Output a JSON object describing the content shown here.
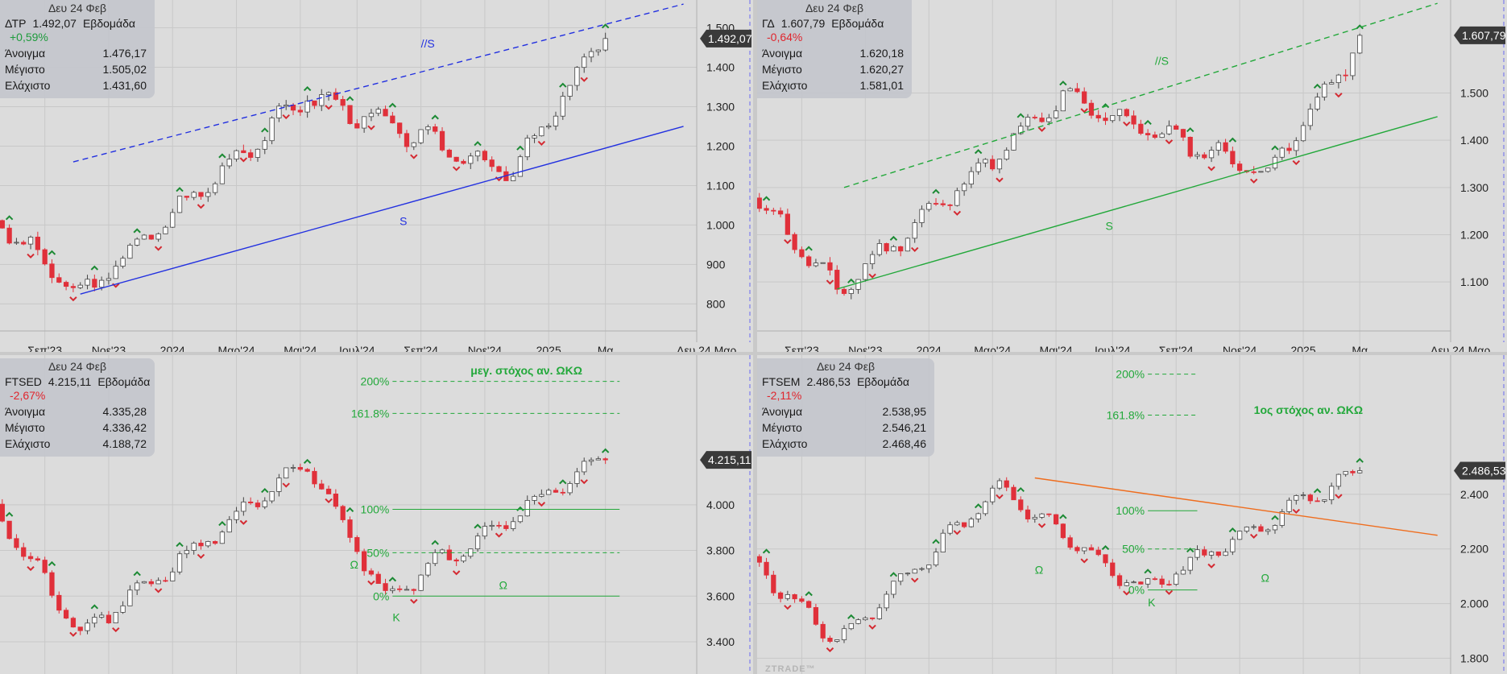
{
  "colors": {
    "up_body": "#ffffff",
    "up_border": "#444444",
    "down": "#e0303a",
    "green": "#22a83a",
    "blue": "#2230e0",
    "orange": "#ef6d1e",
    "bg": "#dcdcdc",
    "grid": "#c8c8c8"
  },
  "watermark": "ZTRADE™",
  "chart_data": [
    {
      "type": "candlestick",
      "info": {
        "date": "Δευ 24 Φεβ",
        "symbol": "ΔΤΡ",
        "close": "1.492,07",
        "period": "Εβδομάδα",
        "change": "+0,59%",
        "change_dir": "pos",
        "open_label": "Άνοιγμα",
        "open": "1.476,17",
        "high_label": "Μέγιστο",
        "high": "1.505,02",
        "low_label": "Ελάχιστο",
        "low": "1.431,60"
      },
      "price_tag": "1.492,07",
      "ylim": [
        760,
        1550
      ],
      "yticks": [
        {
          "v": 1500,
          "t": "1.500"
        },
        {
          "v": 1400,
          "t": "1.400"
        },
        {
          "v": 1300,
          "t": "1.300"
        },
        {
          "v": 1200,
          "t": "1.200"
        },
        {
          "v": 1100,
          "t": "1.100"
        },
        {
          "v": 1000,
          "t": "1.000"
        },
        {
          "v": 900,
          "t": "900"
        },
        {
          "v": 800,
          "t": "800"
        }
      ],
      "xlabels": [
        {
          "i": 7,
          "t": "Σεπ'23"
        },
        {
          "i": 16,
          "t": "Νοε'23"
        },
        {
          "i": 25,
          "t": "2024"
        },
        {
          "i": 34,
          "t": "Μαρ'24"
        },
        {
          "i": 43,
          "t": "Μαι'24"
        },
        {
          "i": 51,
          "t": "Ιουλ'24"
        },
        {
          "i": 60,
          "t": "Σεπ'24"
        },
        {
          "i": 69,
          "t": "Νοε'24"
        },
        {
          "i": 78,
          "t": "2025"
        },
        {
          "i": 86,
          "t": "Μα"
        }
      ],
      "date_tag": "Δευ 24 Μαρ",
      "series": {
        "start": 1015,
        "low": 820,
        "lowIdx": 12,
        "peak1": 1330,
        "peak1Idx": 44,
        "trough": 1130,
        "troughIdx": 73,
        "end": 1492,
        "n": 87,
        "seed": 3
      },
      "annotations": [
        {
          "type": "line",
          "dashed": true,
          "color": "blue",
          "x": [
            11,
            97
          ],
          "y": [
            1160,
            1560
          ]
        },
        {
          "type": "line",
          "dashed": false,
          "color": "blue",
          "x": [
            12,
            97
          ],
          "y": [
            825,
            1250
          ]
        },
        {
          "type": "text",
          "text": "//S",
          "color": "blue",
          "i": 60,
          "v": 1450
        },
        {
          "type": "text",
          "text": "S",
          "color": "blue",
          "i": 57,
          "v": 1000
        }
      ]
    },
    {
      "type": "candlestick",
      "info": {
        "date": "Δευ 24 Φεβ",
        "symbol": "ΓΔ",
        "close": "1.607,79",
        "period": "Εβδομάδα",
        "change": "-0,64%",
        "change_dir": "neg",
        "open_label": "Άνοιγμα",
        "open": "1.620,18",
        "high_label": "Μέγιστο",
        "high": "1.620,27",
        "low_label": "Ελάχιστο",
        "low": "1.581,01"
      },
      "price_tag": "1.607,79",
      "ylim": [
        1020,
        1680
      ],
      "yticks": [
        {
          "v": 1500,
          "t": "1.500"
        },
        {
          "v": 1400,
          "t": "1.400"
        },
        {
          "v": 1300,
          "t": "1.300"
        },
        {
          "v": 1200,
          "t": "1.200"
        },
        {
          "v": 1100,
          "t": "1.100"
        }
      ],
      "xlabels": [
        {
          "i": 7,
          "t": "Σεπ'23"
        },
        {
          "i": 16,
          "t": "Νοε'23"
        },
        {
          "i": 25,
          "t": "2024"
        },
        {
          "i": 34,
          "t": "Μαρ'24"
        },
        {
          "i": 43,
          "t": "Μαι'24"
        },
        {
          "i": 51,
          "t": "Ιουλ'24"
        },
        {
          "i": 60,
          "t": "Σεπ'24"
        },
        {
          "i": 69,
          "t": "Νοε'24"
        },
        {
          "i": 78,
          "t": "2025"
        },
        {
          "i": 86,
          "t": "Μα"
        }
      ],
      "date_tag": "Δευ 24 Μαρ",
      "series": {
        "start": 1290,
        "low": 1080,
        "lowIdx": 12,
        "peak1": 1490,
        "peak1Idx": 44,
        "trough": 1330,
        "troughIdx": 73,
        "end": 1608,
        "n": 87,
        "seed": 11
      },
      "annotations": [
        {
          "type": "line",
          "dashed": true,
          "color": "green",
          "x": [
            13,
            97
          ],
          "y": [
            1300,
            1690
          ]
        },
        {
          "type": "line",
          "dashed": false,
          "color": "green",
          "x": [
            12,
            97
          ],
          "y": [
            1085,
            1450
          ]
        },
        {
          "type": "text",
          "text": "//S",
          "color": "green",
          "i": 57,
          "v": 1560
        },
        {
          "type": "text",
          "text": "S",
          "color": "green",
          "i": 50,
          "v": 1210
        }
      ]
    },
    {
      "type": "candlestick",
      "info": {
        "date": "Δευ 24 Φεβ",
        "symbol": "FTSED",
        "close": "4.215,11",
        "period": "Εβδομάδα",
        "change": "-2,67%",
        "change_dir": "neg",
        "open_label": "Άνοιγμα",
        "open": "4.335,28",
        "high_label": "Μέγιστο",
        "high": "4.336,42",
        "low_label": "Ελάχιστο",
        "low": "4.188,72"
      },
      "price_tag": "4.215,11",
      "ylim": [
        3280,
        4620
      ],
      "yticks": [
        {
          "v": 4000,
          "t": "4.000"
        },
        {
          "v": 3800,
          "t": "3.800"
        },
        {
          "v": 3600,
          "t": "3.600"
        },
        {
          "v": 3400,
          "t": "3.400"
        }
      ],
      "xlabels": [],
      "series": {
        "start": 3980,
        "low": 3430,
        "lowIdx": 12,
        "peak1": 4180,
        "peak1Idx": 44,
        "trough": 3600,
        "troughIdx": 55,
        "end": 4215,
        "n": 87,
        "seed": 21
      },
      "annotations": [
        {
          "type": "fib",
          "label": "200%",
          "i0": 56,
          "i1": 88,
          "v": 4540,
          "dashed": true
        },
        {
          "type": "fib",
          "label": "161.8%",
          "i0": 56,
          "i1": 88,
          "v": 4400,
          "dashed": true
        },
        {
          "type": "fib",
          "label": "100%",
          "i0": 56,
          "i1": 88,
          "v": 3980,
          "dashed": false
        },
        {
          "type": "fib",
          "label": "50%",
          "i0": 56,
          "i1": 88,
          "v": 3790,
          "dashed": true
        },
        {
          "type": "fib",
          "label": "0%",
          "i0": 56,
          "i1": 88,
          "v": 3600,
          "dashed": false
        },
        {
          "type": "text",
          "text": "μεγ. στόχος αν. ΩΚΩ",
          "color": "green",
          "i": 67,
          "v": 4570,
          "bold": true
        },
        {
          "type": "text",
          "text": "Ω",
          "color": "green",
          "i": 50,
          "v": 3720
        },
        {
          "type": "text",
          "text": "Κ",
          "color": "green",
          "i": 56,
          "v": 3490
        },
        {
          "type": "text",
          "text": "Ω",
          "color": "green",
          "i": 71,
          "v": 3630
        }
      ]
    },
    {
      "type": "candlestick",
      "info": {
        "date": "Δευ 24 Φεβ",
        "symbol": "FTSEM",
        "close": "2.486,53",
        "period": "Εβδομάδα",
        "change": "-2,11%",
        "change_dir": "neg",
        "open_label": "Άνοιγμα",
        "open": "2.538,95",
        "high_label": "Μέγιστο",
        "high": "2.546,21",
        "low_label": "Ελάχιστο",
        "low": "2.468,46"
      },
      "price_tag": "2.486,53",
      "ylim": [
        1760,
        2880
      ],
      "yticks": [
        {
          "v": 2400,
          "t": "2.400"
        },
        {
          "v": 2200,
          "t": "2.200"
        },
        {
          "v": 2000,
          "t": "2.000"
        },
        {
          "v": 1800,
          "t": "1.800"
        }
      ],
      "xlabels": [],
      "series": {
        "start": 2150,
        "low": 1860,
        "lowIdx": 12,
        "peak1": 2420,
        "peak1Idx": 35,
        "trough": 2050,
        "troughIdx": 55,
        "end": 2486,
        "n": 87,
        "seed": 33
      },
      "annotations": [
        {
          "type": "fib",
          "label": "200%",
          "i0": 56,
          "i1": 63,
          "v": 2840,
          "dashed": true
        },
        {
          "type": "fib",
          "label": "161.8%",
          "i0": 56,
          "i1": 63,
          "v": 2690,
          "dashed": true
        },
        {
          "type": "fib",
          "label": "100%",
          "i0": 56,
          "i1": 63,
          "v": 2340,
          "dashed": false
        },
        {
          "type": "fib",
          "label": "50%",
          "i0": 56,
          "i1": 63,
          "v": 2200,
          "dashed": true
        },
        {
          "type": "fib",
          "label": "0%",
          "i0": 56,
          "i1": 63,
          "v": 2050,
          "dashed": false
        },
        {
          "type": "text",
          "text": "1ος στόχος αν. ΩΚΩ",
          "color": "green",
          "i": 71,
          "v": 2695,
          "bold": true
        },
        {
          "type": "text",
          "text": "Ω",
          "color": "green",
          "i": 40,
          "v": 2110
        },
        {
          "type": "text",
          "text": "Κ",
          "color": "green",
          "i": 56,
          "v": 1990
        },
        {
          "type": "text",
          "text": "Ω",
          "color": "green",
          "i": 72,
          "v": 2080
        },
        {
          "type": "line",
          "dashed": false,
          "color": "orange",
          "x": [
            40,
            97
          ],
          "y": [
            2460,
            2250
          ]
        }
      ]
    }
  ]
}
